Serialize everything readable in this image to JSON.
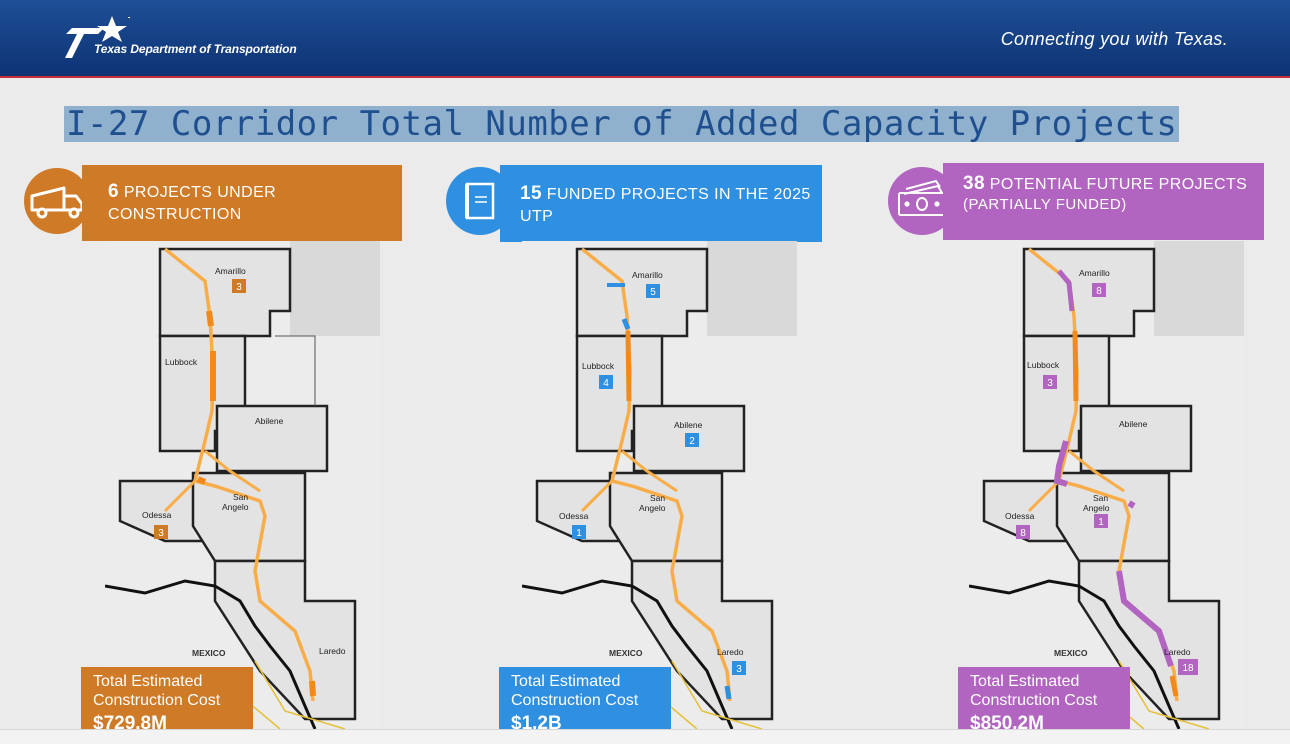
{
  "header": {
    "logo_text": "Texas Department of Transportation",
    "tagline": "Connecting you with Texas."
  },
  "title": "I-27 Corridor Total Number of Added Capacity Projects",
  "colors": {
    "construction": "#cf7a26",
    "funded": "#2f8fe0",
    "future": "#b164c0",
    "header": "#15418a"
  },
  "panels": [
    {
      "num": "6",
      "text": "PROJECTS UNDER CONSTRUCTION",
      "sub": "",
      "icon": "dump-truck-icon",
      "cost_label_1": "Total Estimated",
      "cost_label_2": "Construction Cost",
      "cost_value": "$729.8M",
      "counts": {
        "amarillo": "3",
        "lubbock": "",
        "abilene": "",
        "odessa": "3",
        "san_angelo": "",
        "laredo": ""
      }
    },
    {
      "num": "15",
      "text": "FUNDED PROJECTS IN THE 2025 UTP",
      "sub": "",
      "icon": "document-icon",
      "cost_label_1": "Total Estimated",
      "cost_label_2": "Construction Cost",
      "cost_value": "$1.2B",
      "counts": {
        "amarillo": "5",
        "lubbock": "4",
        "abilene": "2",
        "odessa": "1",
        "san_angelo": "",
        "laredo": "3"
      }
    },
    {
      "num": "38",
      "text": "POTENTIAL FUTURE PROJECTS",
      "sub": "(PARTIALLY FUNDED)",
      "icon": "money-icon",
      "cost_label_1": "Total Estimated",
      "cost_label_2": "Construction Cost",
      "cost_value": "$850.2M",
      "counts": {
        "amarillo": "8",
        "lubbock": "3",
        "abilene": "",
        "odessa": "8",
        "san_angelo": "1",
        "laredo": "18"
      }
    }
  ],
  "map_labels": {
    "amarillo": "Amarillo",
    "lubbock": "Lubbock",
    "abilene": "Abilene",
    "odessa": "Odessa",
    "san_angelo_1": "San",
    "san_angelo_2": "Angelo",
    "laredo": "Laredo",
    "mexico": "MEXICO"
  }
}
